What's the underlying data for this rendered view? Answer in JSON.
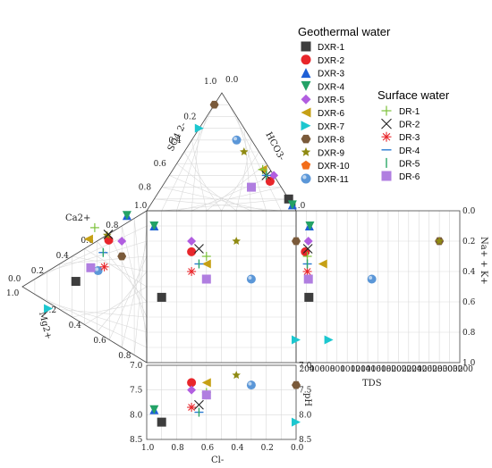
{
  "chart_data": {
    "type": "scatter",
    "subtype": "durov-diagram",
    "title": "",
    "axes": {
      "anion_triangle": {
        "vertices": [
          "HCO3-",
          "SO4 2-",
          "Cl-"
        ],
        "ticks": [
          "0.0",
          "0.2",
          "0.4",
          "0.6",
          "0.8",
          "1.0"
        ]
      },
      "cation_triangle": {
        "vertices": [
          "Ca2+",
          "Mg2+",
          "Na+ + K+"
        ],
        "ticks": [
          "0.0",
          "0.2",
          "0.4",
          "0.6",
          "0.8",
          "1.0"
        ]
      },
      "right_axis": {
        "label": "Na+ + K+",
        "ylim": [
          0,
          1
        ],
        "ticks": [
          "0.0",
          "0.2",
          "0.4",
          "0.6",
          "0.8",
          "1.0"
        ]
      },
      "tds_axis": {
        "label": "TDS",
        "xlim": [
          0,
          3200
        ],
        "ticks": [
          "0",
          "200",
          "400",
          "600",
          "800",
          "1000",
          "1200",
          "1400",
          "1600",
          "1800",
          "2000",
          "2200",
          "2400",
          "2600",
          "2800",
          "3000",
          "3200"
        ]
      },
      "cl_axis": {
        "label": "Cl-",
        "xlim": [
          1.0,
          0.0
        ],
        "ticks": [
          "1.0",
          "0.8",
          "0.6",
          "0.4",
          "0.2",
          "0.0"
        ]
      },
      "ph_axis": {
        "label": "pH",
        "ylim": [
          7.0,
          8.5
        ],
        "ticks": [
          "7.0",
          "7.5",
          "8.0",
          "8.5"
        ]
      }
    },
    "legend": {
      "groups": [
        {
          "title": "Geothermal water",
          "entries": [
            {
              "name": "DXR-1",
              "marker": "square",
              "color": "#3d3d3d"
            },
            {
              "name": "DXR-2",
              "marker": "circle",
              "color": "#e8262b"
            },
            {
              "name": "DXR-3",
              "marker": "triangle-up",
              "color": "#1e5fd6"
            },
            {
              "name": "DXR-4",
              "marker": "triangle-down",
              "color": "#23a266"
            },
            {
              "name": "DXR-5",
              "marker": "diamond",
              "color": "#b15ee0"
            },
            {
              "name": "DXR-6",
              "marker": "triangle-left",
              "color": "#c6a015"
            },
            {
              "name": "DXR-7",
              "marker": "triangle-right",
              "color": "#1cc7cf"
            },
            {
              "name": "DXR-8",
              "marker": "hexagon",
              "color": "#7a5a3a"
            },
            {
              "name": "DXR-9",
              "marker": "star",
              "color": "#8f8a12"
            },
            {
              "name": "DXR-10",
              "marker": "pentagon",
              "color": "#f26d1a"
            },
            {
              "name": "DXR-11",
              "marker": "sphere",
              "color": "#5b97d8"
            }
          ]
        },
        {
          "title": "Surface water",
          "entries": [
            {
              "name": "DR-1",
              "marker": "plus",
              "color": "#7cc13a"
            },
            {
              "name": "DR-2",
              "marker": "cross",
              "color": "#222222"
            },
            {
              "name": "DR-3",
              "marker": "asterisk",
              "color": "#e8262b"
            },
            {
              "name": "DR-4",
              "marker": "hline",
              "color": "#2b7bd1"
            },
            {
              "name": "DR-5",
              "marker": "vline",
              "color": "#2aa866"
            },
            {
              "name": "DR-6",
              "marker": "square",
              "color": "#b07ee0"
            }
          ]
        }
      ]
    },
    "series": [
      {
        "name": "DXR-1",
        "hco3": 0.1,
        "so4": 0.0,
        "cl": 0.9,
        "ca": 0.25,
        "mg": 0.18,
        "nak": 0.57,
        "tds": 250,
        "ph": 8.15
      },
      {
        "name": "DXR-2",
        "hco3": 0.25,
        "so4": 0.05,
        "cl": 0.7,
        "ca": 0.6,
        "mg": 0.1,
        "nak": 0.27,
        "tds": 180,
        "ph": 7.35
      },
      {
        "name": "DXR-3",
        "hco3": 0.05,
        "so4": 0.0,
        "cl": 0.95,
        "ca": 0.8,
        "mg": 0.05,
        "nak": 0.1,
        "tds": 260,
        "ph": 7.9
      },
      {
        "name": "DXR-4",
        "hco3": 0.05,
        "so4": 0.0,
        "cl": 0.95,
        "ca": 0.8,
        "mg": 0.05,
        "nak": 0.1,
        "tds": 270,
        "ph": 7.9
      },
      {
        "name": "DXR-5",
        "hco3": 0.3,
        "so4": 0.0,
        "cl": 0.7,
        "ca": 0.7,
        "mg": 0.1,
        "nak": 0.2,
        "tds": 240,
        "ph": 7.5
      },
      {
        "name": "DXR-6",
        "hco3": 0.35,
        "so4": 0.05,
        "cl": 0.6,
        "ca": 0.4,
        "mg": 0.15,
        "nak": 0.35,
        "tds": 520,
        "ph": 7.35
      },
      {
        "name": "DXR-7",
        "hco3": 0.7,
        "so4": 0.3,
        "cl": 0.0,
        "ca": 0.05,
        "mg": 0.15,
        "nak": 0.85,
        "tds": 640,
        "ph": 8.15
      },
      {
        "name": "DXR-8",
        "hco3": 0.9,
        "so4": 0.1,
        "cl": 0.0,
        "ca": 0.6,
        "mg": 0.2,
        "nak": 0.2,
        "tds": 2800,
        "ph": 7.4
      },
      {
        "name": "DXR-9",
        "hco3": 0.5,
        "so4": 0.1,
        "cl": 0.4,
        "ca": 0.5,
        "mg": 0.2,
        "nak": 0.2,
        "tds": 2800,
        "ph": 7.2
      },
      {
        "name": "DXR-10",
        "hco3": 0.6,
        "so4": 0.1,
        "cl": 0.3,
        "ca": 0.5,
        "mg": 0.1,
        "nak": 0.45,
        "tds": 1480,
        "ph": 7.4
      },
      {
        "name": "DXR-11",
        "hco3": 0.6,
        "so4": 0.1,
        "cl": 0.3,
        "ca": 0.5,
        "mg": 0.1,
        "nak": 0.45,
        "tds": 1480,
        "ph": 7.4
      },
      {
        "name": "DR-1",
        "hco3": 0.35,
        "so4": 0.05,
        "cl": 0.6,
        "ca": 0.5,
        "mg": 0.1,
        "nak": 0.3,
        "tds": 220,
        "ph": 7.55
      },
      {
        "name": "DR-2",
        "hco3": 0.3,
        "so4": 0.05,
        "cl": 0.65,
        "ca": 0.6,
        "mg": 0.1,
        "nak": 0.25,
        "tds": 230,
        "ph": 7.8
      },
      {
        "name": "DR-3",
        "hco3": 0.25,
        "so4": 0.05,
        "cl": 0.7,
        "ca": 0.55,
        "mg": 0.1,
        "nak": 0.4,
        "tds": 220,
        "ph": 7.85
      },
      {
        "name": "DR-4",
        "hco3": 0.3,
        "so4": 0.05,
        "cl": 0.65,
        "ca": 0.55,
        "mg": 0.1,
        "nak": 0.35,
        "tds": 220,
        "ph": 7.95
      },
      {
        "name": "DR-5",
        "hco3": 0.3,
        "so4": 0.05,
        "cl": 0.65,
        "ca": 0.55,
        "mg": 0.1,
        "nak": 0.35,
        "tds": 220,
        "ph": 7.95
      },
      {
        "name": "DR-6",
        "hco3": 0.2,
        "so4": 0.2,
        "cl": 0.6,
        "ca": 0.4,
        "mg": 0.15,
        "nak": 0.45,
        "tds": 240,
        "ph": 7.6
      }
    ]
  }
}
